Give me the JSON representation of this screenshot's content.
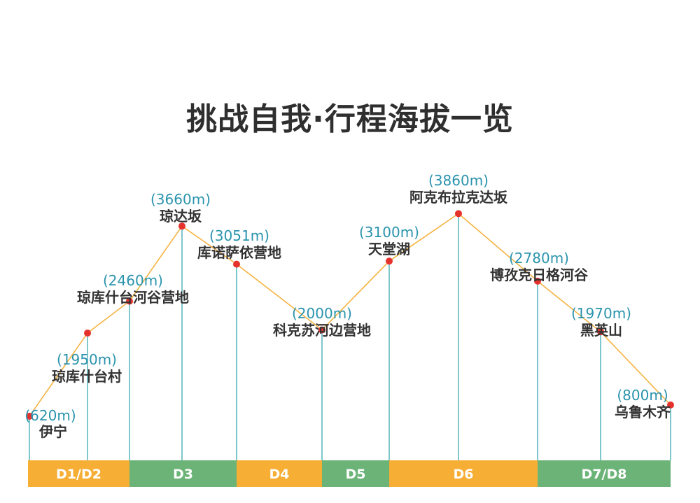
{
  "page": {
    "title": "挑战自我·行程海拔一览"
  },
  "colors": {
    "line": "#f5b342",
    "point": "#e5322d",
    "stem": "#3aa7b2",
    "altitude_text": "#2a93ad",
    "location_text": "#333333",
    "band_orange": "#f6ae35",
    "band_green": "#6bb377"
  },
  "chart_data": {
    "type": "line",
    "title": "挑战自我·行程海拔一览",
    "xlabel": "",
    "ylabel": "",
    "grid": false,
    "points": [
      {
        "name": "伊宁",
        "altitude": 620,
        "altitude_label": "(620m)"
      },
      {
        "name": "琼库什台村",
        "altitude": 1950,
        "altitude_label": "(1950m)"
      },
      {
        "name": "琼库什台河谷营地",
        "altitude": 2460,
        "altitude_label": "(2460m)"
      },
      {
        "name": "琼达坂",
        "altitude": 3660,
        "altitude_label": "(3660m)"
      },
      {
        "name": "库诺萨依营地",
        "altitude": 3051,
        "altitude_label": "(3051m)"
      },
      {
        "name": "科克苏河边营地",
        "altitude": 2000,
        "altitude_label": "(2000m)"
      },
      {
        "name": "天堂湖",
        "altitude": 3100,
        "altitude_label": "(3100m)"
      },
      {
        "name": "阿克布拉克达坂",
        "altitude": 3860,
        "altitude_label": "(3860m)"
      },
      {
        "name": "博孜克日格河谷",
        "altitude": 2780,
        "altitude_label": "(2780m)"
      },
      {
        "name": "黑英山",
        "altitude": 1970,
        "altitude_label": "(1970m)"
      },
      {
        "name": "乌鲁木齐",
        "altitude": 800,
        "altitude_label": "(800m)"
      }
    ],
    "days": [
      {
        "label": "D1/D2",
        "color": "orange"
      },
      {
        "label": "D3",
        "color": "green"
      },
      {
        "label": "D4",
        "color": "orange"
      },
      {
        "label": "D5",
        "color": "green"
      },
      {
        "label": "D6",
        "color": "orange"
      },
      {
        "label": "D7/D8",
        "color": "green"
      }
    ]
  }
}
